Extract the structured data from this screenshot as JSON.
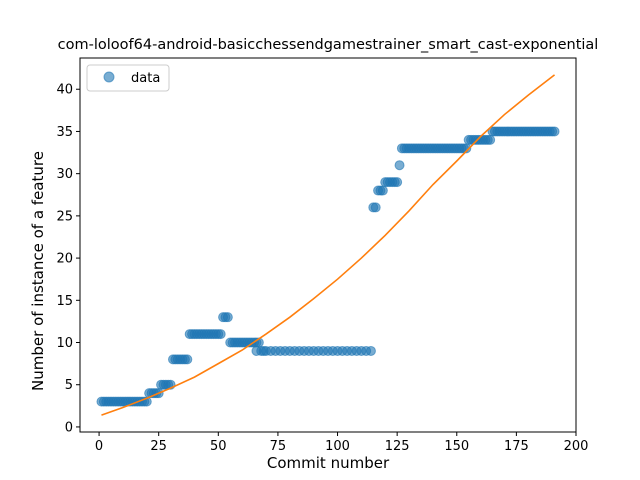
{
  "chart_data": {
    "type": "scatter",
    "title": "com-loloof64-android-basicchessendgamestrainer_smart_cast-exponential",
    "xlabel": "Commit number",
    "ylabel": "Number of instance of a feature",
    "xlim": [
      -8,
      200
    ],
    "ylim": [
      -0.6,
      43.7
    ],
    "xticks": [
      0,
      25,
      50,
      75,
      100,
      125,
      150,
      175,
      200
    ],
    "yticks": [
      0,
      5,
      10,
      15,
      20,
      25,
      30,
      35,
      40
    ],
    "grid": false,
    "legend": {
      "position": "top-left",
      "entries": [
        "data"
      ]
    },
    "colors": {
      "data": "#1f77b4",
      "fit": "#ff7f0e"
    },
    "series": [
      {
        "name": "data",
        "kind": "scatter",
        "points": [
          [
            1,
            3
          ],
          [
            2,
            3
          ],
          [
            3,
            3
          ],
          [
            4,
            3
          ],
          [
            5,
            3
          ],
          [
            6,
            3
          ],
          [
            7,
            3
          ],
          [
            8,
            3
          ],
          [
            9,
            3
          ],
          [
            10,
            3
          ],
          [
            11,
            3
          ],
          [
            12,
            3
          ],
          [
            13,
            3
          ],
          [
            14,
            3
          ],
          [
            15,
            3
          ],
          [
            16,
            3
          ],
          [
            17,
            3
          ],
          [
            18,
            3
          ],
          [
            19,
            3
          ],
          [
            20,
            3
          ],
          [
            21,
            4
          ],
          [
            22,
            4
          ],
          [
            23,
            4
          ],
          [
            24,
            4
          ],
          [
            25,
            4
          ],
          [
            26,
            5
          ],
          [
            27,
            5
          ],
          [
            28,
            5
          ],
          [
            29,
            5
          ],
          [
            30,
            5
          ],
          [
            31,
            8
          ],
          [
            32,
            8
          ],
          [
            33,
            8
          ],
          [
            34,
            8
          ],
          [
            35,
            8
          ],
          [
            36,
            8
          ],
          [
            37,
            8
          ],
          [
            38,
            11
          ],
          [
            39,
            11
          ],
          [
            40,
            11
          ],
          [
            41,
            11
          ],
          [
            42,
            11
          ],
          [
            43,
            11
          ],
          [
            44,
            11
          ],
          [
            45,
            11
          ],
          [
            46,
            11
          ],
          [
            47,
            11
          ],
          [
            48,
            11
          ],
          [
            49,
            11
          ],
          [
            50,
            11
          ],
          [
            51,
            11
          ],
          [
            52,
            13
          ],
          [
            53,
            13
          ],
          [
            54,
            13
          ],
          [
            55,
            10
          ],
          [
            56,
            10
          ],
          [
            57,
            10
          ],
          [
            58,
            10
          ],
          [
            59,
            10
          ],
          [
            60,
            10
          ],
          [
            61,
            10
          ],
          [
            62,
            10
          ],
          [
            63,
            10
          ],
          [
            64,
            10
          ],
          [
            65,
            10
          ],
          [
            66,
            10
          ],
          [
            67,
            10
          ],
          [
            66,
            9
          ],
          [
            68,
            9
          ],
          [
            69,
            9
          ],
          [
            70,
            9
          ],
          [
            72,
            9
          ],
          [
            74,
            9
          ],
          [
            76,
            9
          ],
          [
            78,
            9
          ],
          [
            80,
            9
          ],
          [
            82,
            9
          ],
          [
            84,
            9
          ],
          [
            86,
            9
          ],
          [
            88,
            9
          ],
          [
            90,
            9
          ],
          [
            92,
            9
          ],
          [
            94,
            9
          ],
          [
            96,
            9
          ],
          [
            98,
            9
          ],
          [
            100,
            9
          ],
          [
            102,
            9
          ],
          [
            104,
            9
          ],
          [
            106,
            9
          ],
          [
            108,
            9
          ],
          [
            110,
            9
          ],
          [
            112,
            9
          ],
          [
            114,
            9
          ],
          [
            115,
            26
          ],
          [
            116,
            26
          ],
          [
            117,
            28
          ],
          [
            118,
            28
          ],
          [
            119,
            28
          ],
          [
            120,
            29
          ],
          [
            121,
            29
          ],
          [
            122,
            29
          ],
          [
            123,
            29
          ],
          [
            124,
            29
          ],
          [
            125,
            29
          ],
          [
            126,
            31
          ],
          [
            127,
            33
          ],
          [
            128,
            33
          ],
          [
            129,
            33
          ],
          [
            130,
            33
          ],
          [
            131,
            33
          ],
          [
            132,
            33
          ],
          [
            133,
            33
          ],
          [
            134,
            33
          ],
          [
            135,
            33
          ],
          [
            136,
            33
          ],
          [
            137,
            33
          ],
          [
            138,
            33
          ],
          [
            139,
            33
          ],
          [
            140,
            33
          ],
          [
            141,
            33
          ],
          [
            142,
            33
          ],
          [
            143,
            33
          ],
          [
            144,
            33
          ],
          [
            145,
            33
          ],
          [
            146,
            33
          ],
          [
            147,
            33
          ],
          [
            148,
            33
          ],
          [
            149,
            33
          ],
          [
            150,
            33
          ],
          [
            151,
            33
          ],
          [
            152,
            33
          ],
          [
            153,
            33
          ],
          [
            154,
            33
          ],
          [
            155,
            34
          ],
          [
            156,
            34
          ],
          [
            157,
            34
          ],
          [
            158,
            34
          ],
          [
            159,
            34
          ],
          [
            160,
            34
          ],
          [
            161,
            34
          ],
          [
            162,
            34
          ],
          [
            163,
            34
          ],
          [
            164,
            34
          ],
          [
            165,
            35
          ],
          [
            166,
            35
          ],
          [
            167,
            35
          ],
          [
            168,
            35
          ],
          [
            169,
            35
          ],
          [
            170,
            35
          ],
          [
            171,
            35
          ],
          [
            172,
            35
          ],
          [
            173,
            35
          ],
          [
            174,
            35
          ],
          [
            175,
            35
          ],
          [
            176,
            35
          ],
          [
            177,
            35
          ],
          [
            178,
            35
          ],
          [
            179,
            35
          ],
          [
            180,
            35
          ],
          [
            181,
            35
          ],
          [
            182,
            35
          ],
          [
            183,
            35
          ],
          [
            184,
            35
          ],
          [
            185,
            35
          ],
          [
            186,
            35
          ],
          [
            187,
            35
          ],
          [
            188,
            35
          ],
          [
            189,
            35
          ],
          [
            190,
            35
          ],
          [
            191,
            35
          ]
        ]
      },
      {
        "kind": "line",
        "points": [
          [
            1,
            1.4
          ],
          [
            10,
            2.3
          ],
          [
            20,
            3.4
          ],
          [
            30,
            4.6
          ],
          [
            40,
            5.9
          ],
          [
            50,
            7.5
          ],
          [
            60,
            9.1
          ],
          [
            70,
            11.0
          ],
          [
            80,
            13.0
          ],
          [
            90,
            15.2
          ],
          [
            100,
            17.5
          ],
          [
            110,
            20.0
          ],
          [
            120,
            22.7
          ],
          [
            130,
            25.6
          ],
          [
            140,
            28.7
          ],
          [
            150,
            31.5
          ],
          [
            160,
            34.4
          ],
          [
            170,
            37.0
          ],
          [
            180,
            39.3
          ],
          [
            191,
            41.7
          ]
        ]
      }
    ]
  }
}
